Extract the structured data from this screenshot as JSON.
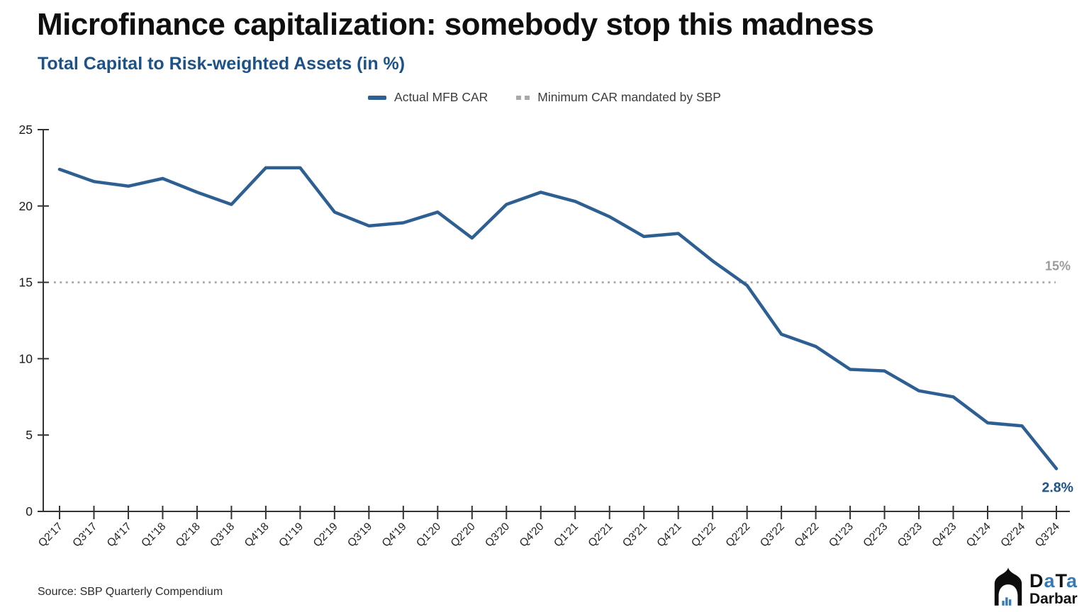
{
  "header": {
    "title": "Microfinance capitalization: somebody stop this madness",
    "subtitle": "Total Capital to Risk-weighted Assets (in %)"
  },
  "colors": {
    "accent_blue": "#1c5288",
    "line_blue": "#2d5f93",
    "dotted_gray": "#ababab",
    "annotation_gray": "#9b9b9b",
    "axis_dark": "#333333",
    "logo_blue": "#3579b8"
  },
  "legend": {
    "items": [
      {
        "label": "Actual MFB CAR",
        "style": "solid",
        "color": "#2d5f93"
      },
      {
        "label": "Minimum CAR mandated by SBP",
        "style": "dotted",
        "color": "#a9a9a9"
      }
    ]
  },
  "chart_data": {
    "type": "line",
    "title": "Total Capital to Risk-weighted Assets (in %)",
    "xlabel": "",
    "ylabel": "",
    "ylim": [
      0,
      25
    ],
    "yticks": [
      0,
      5,
      10,
      15,
      20,
      25
    ],
    "grid": false,
    "legend_position": "top",
    "categories": [
      "Q2'17",
      "Q3'17",
      "Q4'17",
      "Q1'18",
      "Q2'18",
      "Q3'18",
      "Q4'18",
      "Q1'19",
      "Q2'19",
      "Q3'19",
      "Q4'19",
      "Q1'20",
      "Q2'20",
      "Q3'20",
      "Q4'20",
      "Q1'21",
      "Q2'21",
      "Q3'21",
      "Q4'21",
      "Q1'22",
      "Q2'22",
      "Q3'22",
      "Q4'22",
      "Q1'23",
      "Q2'23",
      "Q3'23",
      "Q4'23",
      "Q1'24",
      "Q2'24",
      "Q3'24"
    ],
    "series": [
      {
        "name": "Actual MFB CAR",
        "color": "#2d5f93",
        "style": "solid",
        "values": [
          22.4,
          21.6,
          21.3,
          21.8,
          20.9,
          20.1,
          22.5,
          22.5,
          19.6,
          18.7,
          18.9,
          19.6,
          17.9,
          20.1,
          20.9,
          20.3,
          19.3,
          18.0,
          18.2,
          16.4,
          14.8,
          11.6,
          10.8,
          9.3,
          9.2,
          7.9,
          7.5,
          5.8,
          5.6,
          2.8
        ]
      },
      {
        "name": "Minimum CAR mandated by SBP",
        "color": "#ababab",
        "style": "dotted",
        "constant": 15
      }
    ],
    "annotations": [
      {
        "text": "15%",
        "color": "#9b9b9b",
        "position": "right-of-min-line"
      },
      {
        "text": "2.8%",
        "color": "#1c5288",
        "position": "below-last-point"
      }
    ]
  },
  "footer": {
    "source": "Source: SBP Quarterly Compendium",
    "logo": {
      "t1": "D",
      "t2": "a",
      "t3": "T",
      "t4": "a",
      "bottom": "Darbar"
    }
  }
}
